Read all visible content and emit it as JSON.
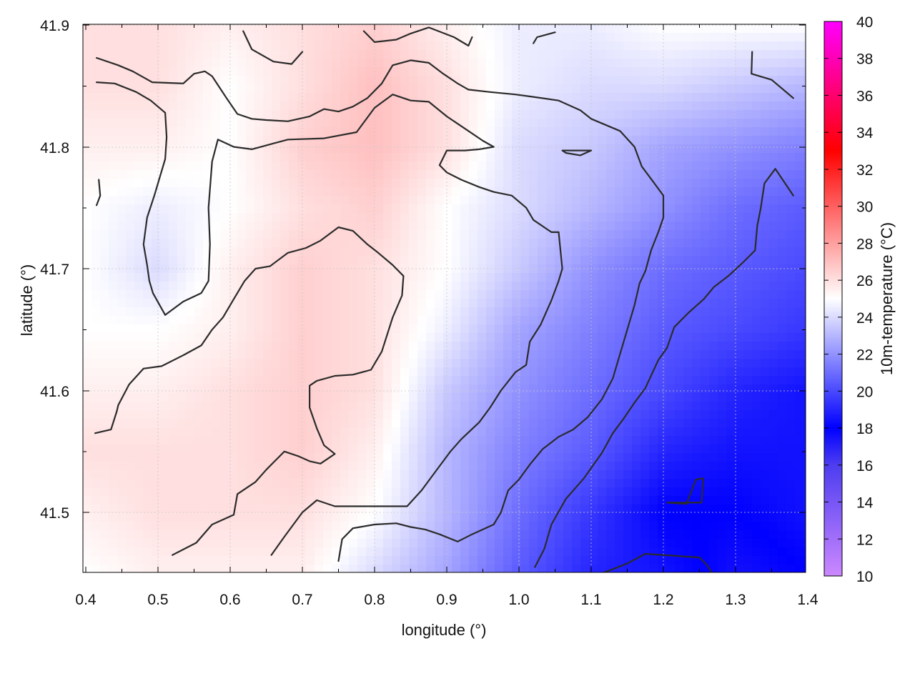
{
  "chart_data": {
    "type": "heatmap",
    "xlabel": "longitude (°)",
    "ylabel": "latitude (°)",
    "colorbar_label": "10m-temperature (°C)",
    "xlim": [
      0.4,
      1.4
    ],
    "ylim": [
      41.45,
      41.9
    ],
    "x_ticks": [
      "0.4",
      "0.5",
      "0.6",
      "0.7",
      "0.8",
      "0.9",
      "1.0",
      "1.1",
      "1.2",
      "1.3",
      "1.4"
    ],
    "y_ticks": [
      "41.5",
      "41.6",
      "41.7",
      "41.8",
      "41.9"
    ],
    "y_tick_values": [
      41.5,
      41.6,
      41.7,
      41.8,
      41.9
    ],
    "colorbar_range": [
      10,
      40
    ],
    "colorbar_ticks": [
      "10",
      "12",
      "14",
      "16",
      "18",
      "20",
      "22",
      "24",
      "26",
      "28",
      "30",
      "32",
      "34",
      "36",
      "38",
      "40"
    ],
    "colorscale": [
      {
        "value": 10,
        "color": "#cc88ff"
      },
      {
        "value": 16,
        "color": "#4d3df0"
      },
      {
        "value": 18,
        "color": "#0000ff"
      },
      {
        "value": 25,
        "color": "#ffffff"
      },
      {
        "value": 33,
        "color": "#ff0000"
      },
      {
        "value": 40,
        "color": "#ff00ff"
      }
    ],
    "temperature_field": {
      "longitude": [
        0.4,
        0.5,
        0.6,
        0.7,
        0.8,
        0.9,
        1.0,
        1.1,
        1.2,
        1.3,
        1.4
      ],
      "latitude": [
        41.9,
        41.85,
        41.8,
        41.75,
        41.7,
        41.65,
        41.6,
        41.55,
        41.5,
        41.45
      ],
      "values": [
        [
          26,
          26,
          25.5,
          26,
          26.5,
          25.5,
          24.5,
          24.5,
          25,
          25,
          25
        ],
        [
          26,
          26,
          25,
          26,
          27,
          26,
          24.5,
          24,
          24,
          23.5,
          23
        ],
        [
          25.5,
          25.5,
          25,
          26.5,
          27,
          26,
          24,
          23.5,
          22.5,
          22,
          21.5
        ],
        [
          25,
          24.5,
          25,
          26,
          26.5,
          25,
          24,
          23,
          22,
          21,
          20.5
        ],
        [
          25,
          24,
          25.5,
          26.5,
          26,
          25,
          23.5,
          22,
          21,
          20.5,
          20
        ],
        [
          25,
          25,
          25.5,
          26.5,
          26,
          24.5,
          22.5,
          21.5,
          20.5,
          20,
          19.5
        ],
        [
          25.5,
          25.5,
          26,
          26.5,
          26,
          23.5,
          22,
          21,
          20,
          19,
          18.5
        ],
        [
          26,
          26,
          26,
          26.5,
          25.5,
          23,
          21.5,
          20.5,
          19,
          18.5,
          18.5
        ],
        [
          25.5,
          26,
          26,
          26,
          25,
          23,
          21,
          19.5,
          18,
          18,
          18.5
        ],
        [
          25,
          25.5,
          25.5,
          25.5,
          24,
          22.5,
          20.5,
          19,
          18.5,
          17.5,
          18
        ]
      ]
    },
    "contours": [
      [
        [
          0.415,
          41.873
        ],
        [
          0.445,
          41.867
        ],
        [
          0.465,
          41.862
        ],
        [
          0.492,
          41.853
        ],
        [
          0.535,
          41.852
        ],
        [
          0.55,
          41.86
        ],
        [
          0.565,
          41.862
        ],
        [
          0.575,
          41.858
        ],
        [
          0.595,
          41.84
        ],
        [
          0.61,
          41.827
        ],
        [
          0.63,
          41.823
        ],
        [
          0.65,
          41.822
        ],
        [
          0.68,
          41.821
        ],
        [
          0.71,
          41.825
        ],
        [
          0.73,
          41.831
        ],
        [
          0.75,
          41.829
        ],
        [
          0.77,
          41.833
        ],
        [
          0.79,
          41.84
        ],
        [
          0.81,
          41.852
        ],
        [
          0.825,
          41.867
        ],
        [
          0.85,
          41.871
        ],
        [
          0.875,
          41.869
        ],
        [
          0.895,
          41.86
        ],
        [
          0.915,
          41.852
        ],
        [
          0.93,
          41.847
        ],
        [
          0.96,
          41.845
        ],
        [
          0.995,
          41.843
        ],
        [
          1.02,
          41.841
        ],
        [
          1.055,
          41.838
        ],
        [
          1.085,
          41.83
        ],
        [
          1.1,
          41.823
        ],
        [
          1.12,
          41.818
        ],
        [
          1.14,
          41.813
        ],
        [
          1.16,
          41.8
        ],
        [
          1.17,
          41.784
        ],
        [
          1.185,
          41.772
        ],
        [
          1.2,
          41.76
        ],
        [
          1.2,
          41.742
        ],
        [
          1.193,
          41.73
        ],
        [
          1.183,
          41.715
        ],
        [
          1.175,
          41.698
        ],
        [
          1.167,
          41.688
        ],
        [
          1.16,
          41.67
        ],
        [
          1.15,
          41.65
        ],
        [
          1.14,
          41.63
        ],
        [
          1.13,
          41.61
        ],
        [
          1.115,
          41.593
        ],
        [
          1.095,
          41.578
        ],
        [
          1.075,
          41.568
        ],
        [
          1.055,
          41.562
        ],
        [
          1.033,
          41.552
        ],
        [
          1.016,
          41.54
        ],
        [
          1.0,
          41.527
        ],
        [
          0.985,
          41.518
        ],
        [
          0.975,
          41.5
        ],
        [
          0.965,
          41.49
        ],
        [
          0.935,
          41.482
        ],
        [
          0.925,
          41.479
        ],
        [
          0.915,
          41.476
        ],
        [
          0.89,
          41.482
        ],
        [
          0.87,
          41.486
        ],
        [
          0.85,
          41.488
        ],
        [
          0.83,
          41.491
        ],
        [
          0.8,
          41.49
        ],
        [
          0.78,
          41.488
        ],
        [
          0.77,
          41.487
        ],
        [
          0.755,
          41.478
        ],
        [
          0.75,
          41.46
        ]
      ],
      [
        [
          0.415,
          41.853
        ],
        [
          0.44,
          41.852
        ],
        [
          0.47,
          41.845
        ],
        [
          0.49,
          41.838
        ],
        [
          0.51,
          41.828
        ],
        [
          0.512,
          41.808
        ],
        [
          0.51,
          41.79
        ],
        [
          0.495,
          41.76
        ],
        [
          0.485,
          41.742
        ],
        [
          0.48,
          41.72
        ],
        [
          0.485,
          41.703
        ],
        [
          0.488,
          41.69
        ],
        [
          0.493,
          41.68
        ],
        [
          0.51,
          41.662
        ],
        [
          0.535,
          41.673
        ],
        [
          0.56,
          41.68
        ],
        [
          0.57,
          41.69
        ],
        [
          0.572,
          41.72
        ],
        [
          0.57,
          41.75
        ],
        [
          0.575,
          41.788
        ],
        [
          0.583,
          41.806
        ],
        [
          0.605,
          41.8
        ],
        [
          0.63,
          41.798
        ],
        [
          0.68,
          41.806
        ],
        [
          0.73,
          41.807
        ],
        [
          0.775,
          41.812
        ],
        [
          0.8,
          41.832
        ],
        [
          0.825,
          41.843
        ],
        [
          0.85,
          41.838
        ],
        [
          0.875,
          41.837
        ],
        [
          0.9,
          41.825
        ],
        [
          0.93,
          41.813
        ],
        [
          0.95,
          41.805
        ],
        [
          0.965,
          41.8
        ],
        [
          0.945,
          41.798
        ],
        [
          0.925,
          41.797
        ],
        [
          0.9,
          41.797
        ],
        [
          0.89,
          41.785
        ],
        [
          0.9,
          41.779
        ],
        [
          0.92,
          41.773
        ],
        [
          0.945,
          41.767
        ],
        [
          0.965,
          41.763
        ],
        [
          0.99,
          41.76
        ],
        [
          1.01,
          41.75
        ],
        [
          1.02,
          41.74
        ],
        [
          1.045,
          41.73
        ],
        [
          1.055,
          41.73
        ],
        [
          1.06,
          41.7
        ],
        [
          1.055,
          41.69
        ],
        [
          1.045,
          41.674
        ],
        [
          1.03,
          41.654
        ],
        [
          1.015,
          41.64
        ],
        [
          1.01,
          41.621
        ],
        [
          0.995,
          41.615
        ],
        [
          0.975,
          41.6
        ],
        [
          0.96,
          41.586
        ],
        [
          0.945,
          41.574
        ],
        [
          0.92,
          41.56
        ],
        [
          0.905,
          41.55
        ],
        [
          0.885,
          41.534
        ],
        [
          0.865,
          41.518
        ],
        [
          0.845,
          41.505
        ],
        [
          0.8,
          41.505
        ],
        [
          0.745,
          41.505
        ],
        [
          0.72,
          41.51
        ],
        [
          0.7,
          41.5
        ],
        [
          0.675,
          41.48
        ],
        [
          0.657,
          41.465
        ]
      ],
      [
        [
          0.413,
          41.565
        ],
        [
          0.435,
          41.568
        ],
        [
          0.443,
          41.583
        ],
        [
          0.445,
          41.588
        ],
        [
          0.46,
          41.605
        ],
        [
          0.48,
          41.618
        ],
        [
          0.505,
          41.62
        ],
        [
          0.535,
          41.629
        ],
        [
          0.56,
          41.637
        ],
        [
          0.575,
          41.65
        ],
        [
          0.59,
          41.66
        ],
        [
          0.605,
          41.675
        ],
        [
          0.62,
          41.69
        ],
        [
          0.635,
          41.7
        ],
        [
          0.655,
          41.702
        ],
        [
          0.68,
          41.713
        ],
        [
          0.705,
          41.717
        ],
        [
          0.725,
          41.723
        ],
        [
          0.75,
          41.734
        ],
        [
          0.77,
          41.731
        ],
        [
          0.79,
          41.72
        ],
        [
          0.805,
          41.713
        ],
        [
          0.825,
          41.703
        ],
        [
          0.84,
          41.694
        ],
        [
          0.838,
          41.678
        ],
        [
          0.825,
          41.66
        ],
        [
          0.81,
          41.632
        ],
        [
          0.795,
          41.617
        ],
        [
          0.77,
          41.613
        ],
        [
          0.745,
          41.612
        ],
        [
          0.72,
          41.608
        ],
        [
          0.71,
          41.604
        ],
        [
          0.71,
          41.586
        ],
        [
          0.72,
          41.569
        ],
        [
          0.73,
          41.555
        ],
        [
          0.745,
          41.548
        ],
        [
          0.725,
          41.54
        ],
        [
          0.71,
          41.542
        ],
        [
          0.695,
          41.546
        ],
        [
          0.675,
          41.55
        ],
        [
          0.665,
          41.544
        ],
        [
          0.65,
          41.535
        ],
        [
          0.635,
          41.525
        ],
        [
          0.61,
          41.515
        ],
        [
          0.605,
          41.498
        ],
        [
          0.575,
          41.49
        ],
        [
          0.553,
          41.475
        ],
        [
          0.52,
          41.465
        ]
      ],
      [
        [
          1.065,
          41.795
        ],
        [
          1.085,
          41.793
        ],
        [
          1.1,
          41.797
        ],
        [
          1.06,
          41.797
        ],
        [
          1.065,
          41.795
        ]
      ],
      [
        [
          1.205,
          41.508
        ],
        [
          1.232,
          41.507
        ],
        [
          1.245,
          41.527
        ],
        [
          1.255,
          41.528
        ],
        [
          1.253,
          41.508
        ],
        [
          1.205,
          41.508
        ]
      ],
      [
        [
          1.022,
          41.455
        ],
        [
          1.035,
          41.47
        ],
        [
          1.045,
          41.49
        ],
        [
          1.065,
          41.511
        ],
        [
          1.09,
          41.528
        ],
        [
          1.115,
          41.549
        ],
        [
          1.13,
          41.565
        ],
        [
          1.145,
          41.577
        ],
        [
          1.16,
          41.59
        ],
        [
          1.175,
          41.602
        ],
        [
          1.193,
          41.625
        ],
        [
          1.205,
          41.635
        ],
        [
          1.215,
          41.652
        ],
        [
          1.235,
          41.664
        ],
        [
          1.256,
          41.675
        ],
        [
          1.27,
          41.685
        ],
        [
          1.29,
          41.694
        ],
        [
          1.31,
          41.705
        ],
        [
          1.327,
          41.715
        ],
        [
          1.33,
          41.735
        ],
        [
          1.335,
          41.75
        ],
        [
          1.34,
          41.77
        ],
        [
          1.355,
          41.782
        ],
        [
          1.38,
          41.76
        ]
      ],
      [
        [
          1.115,
          41.45
        ],
        [
          1.15,
          41.458
        ],
        [
          1.175,
          41.466
        ],
        [
          1.25,
          41.463
        ],
        [
          1.26,
          41.457
        ],
        [
          1.27,
          41.448
        ]
      ],
      [
        [
          1.323,
          41.878
        ],
        [
          1.322,
          41.86
        ],
        [
          1.35,
          41.855
        ],
        [
          1.38,
          41.84
        ]
      ],
      [
        [
          0.618,
          41.895
        ],
        [
          0.63,
          41.88
        ],
        [
          0.66,
          41.87
        ],
        [
          0.685,
          41.868
        ],
        [
          0.7,
          41.878
        ]
      ],
      [
        [
          0.785,
          41.895
        ],
        [
          0.8,
          41.886
        ],
        [
          0.83,
          41.888
        ],
        [
          0.85,
          41.893
        ],
        [
          0.875,
          41.898
        ],
        [
          0.91,
          41.89
        ],
        [
          0.93,
          41.883
        ],
        [
          0.935,
          41.89
        ]
      ],
      [
        [
          1.02,
          41.885
        ],
        [
          1.025,
          41.89
        ],
        [
          1.05,
          41.894
        ]
      ],
      [
        [
          0.418,
          41.773
        ],
        [
          0.42,
          41.76
        ],
        [
          0.415,
          41.752
        ]
      ]
    ]
  }
}
